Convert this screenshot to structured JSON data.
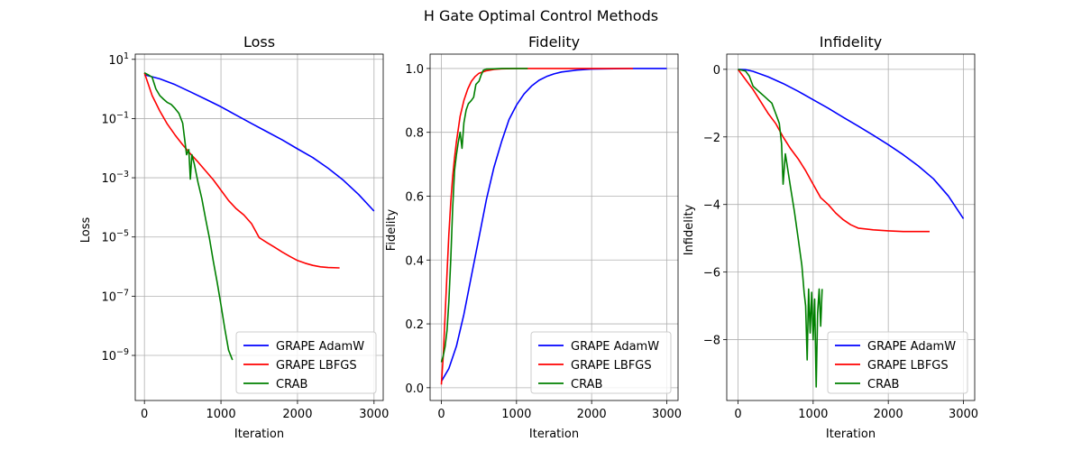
{
  "figure": {
    "title": "H Gate Optimal Control Methods"
  },
  "chart_data": [
    {
      "type": "line",
      "title": "Loss",
      "xlabel": "Iteration",
      "ylabel": "Loss",
      "yscale": "log",
      "xlim": [
        -120,
        3120
      ],
      "ylim": [
        3e-11,
        15
      ],
      "xticks": [
        0,
        1000,
        2000,
        3000
      ],
      "yticks": [
        10,
        0.1,
        0.001,
        1e-05,
        1e-07,
        1e-09
      ],
      "ytick_labels": [
        "10^1",
        "10^-1",
        "10^-3",
        "10^-5",
        "10^-7",
        "10^-9"
      ],
      "grid": true,
      "legend": "lower right",
      "series": [
        {
          "name": "GRAPE AdamW",
          "color": "#0000ff",
          "x": [
            0,
            200,
            400,
            600,
            800,
            1000,
            1200,
            1400,
            1600,
            1800,
            2000,
            2200,
            2400,
            2600,
            2800,
            3000
          ],
          "y": [
            3.0,
            2.2,
            1.4,
            0.8,
            0.45,
            0.25,
            0.13,
            0.068,
            0.036,
            0.019,
            0.0095,
            0.0048,
            0.0021,
            0.00082,
            0.00027,
            7.5e-05
          ]
        },
        {
          "name": "GRAPE LBFGS",
          "color": "#ff0000",
          "x": [
            0,
            100,
            200,
            300,
            400,
            500,
            600,
            700,
            800,
            900,
            1000,
            1100,
            1200,
            1300,
            1400,
            1500,
            1600,
            1700,
            1800,
            1900,
            2000,
            2100,
            2200,
            2300,
            2400,
            2550
          ],
          "y": [
            3.5,
            0.6,
            0.18,
            0.065,
            0.028,
            0.013,
            0.0065,
            0.0034,
            0.0017,
            0.00085,
            0.00038,
            0.00017,
            9e-05,
            5.5e-05,
            2.8e-05,
            9.5e-06,
            6.5e-06,
            4.5e-06,
            3.1e-06,
            2.2e-06,
            1.6e-06,
            1.3e-06,
            1.1e-06,
            9.8e-07,
            9.3e-07,
            9e-07
          ]
        },
        {
          "name": "CRAB",
          "color": "#008000",
          "x": [
            0,
            50,
            100,
            150,
            200,
            250,
            300,
            350,
            400,
            450,
            500,
            550,
            580,
            600,
            620,
            650,
            700,
            750,
            800,
            850,
            900,
            950,
            1000,
            1050,
            1100,
            1150
          ],
          "y": [
            3.5,
            3.0,
            2.5,
            1.0,
            0.6,
            0.45,
            0.35,
            0.3,
            0.22,
            0.15,
            0.07,
            0.006,
            0.009,
            0.0009,
            0.006,
            0.003,
            0.0007,
            0.0002,
            4e-05,
            9e-06,
            1.5e-06,
            3e-07,
            5e-08,
            8e-09,
            1.5e-09,
            7e-10
          ]
        }
      ]
    },
    {
      "type": "line",
      "title": "Fidelity",
      "xlabel": "Iteration",
      "ylabel": "Fidelity",
      "yscale": "linear",
      "xlim": [
        -150,
        3150
      ],
      "ylim": [
        -0.04,
        1.045
      ],
      "xticks": [
        0,
        1000,
        2000,
        3000
      ],
      "yticks": [
        0.0,
        0.2,
        0.4,
        0.6,
        0.8,
        1.0
      ],
      "ytick_labels": [
        "0.0",
        "0.2",
        "0.4",
        "0.6",
        "0.8",
        "1.0"
      ],
      "grid": true,
      "legend": "lower right",
      "series": [
        {
          "name": "GRAPE AdamW",
          "color": "#0000ff",
          "x": [
            0,
            100,
            200,
            300,
            400,
            500,
            600,
            700,
            800,
            900,
            1000,
            1100,
            1200,
            1300,
            1400,
            1500,
            1600,
            1800,
            2000,
            2200,
            2500,
            3000
          ],
          "y": [
            0.02,
            0.06,
            0.13,
            0.23,
            0.35,
            0.47,
            0.59,
            0.69,
            0.77,
            0.84,
            0.885,
            0.92,
            0.945,
            0.963,
            0.975,
            0.983,
            0.989,
            0.995,
            0.998,
            0.999,
            1.0,
            1.0
          ]
        },
        {
          "name": "GRAPE LBFGS",
          "color": "#ff0000",
          "x": [
            0,
            25,
            50,
            75,
            100,
            125,
            150,
            175,
            200,
            250,
            300,
            350,
            400,
            450,
            500,
            600,
            700,
            800,
            1000,
            1500,
            2550
          ],
          "y": [
            0.01,
            0.1,
            0.23,
            0.36,
            0.48,
            0.58,
            0.66,
            0.72,
            0.77,
            0.85,
            0.9,
            0.935,
            0.96,
            0.975,
            0.985,
            0.993,
            0.997,
            0.999,
            1.0,
            1.0,
            1.0
          ]
        },
        {
          "name": "CRAB",
          "color": "#008000",
          "x": [
            0,
            25,
            50,
            75,
            100,
            125,
            150,
            175,
            200,
            225,
            250,
            275,
            300,
            330,
            360,
            400,
            430,
            460,
            500,
            530,
            560,
            600,
            700,
            800,
            1000,
            1150
          ],
          "y": [
            0.08,
            0.1,
            0.13,
            0.18,
            0.27,
            0.4,
            0.56,
            0.68,
            0.73,
            0.77,
            0.8,
            0.75,
            0.83,
            0.87,
            0.89,
            0.9,
            0.91,
            0.95,
            0.96,
            0.98,
            0.995,
            0.998,
            0.999,
            1.0,
            1.0,
            1.0
          ]
        }
      ]
    },
    {
      "type": "line",
      "title": "Infidelity",
      "xlabel": "Iteration",
      "ylabel": "Infidelity",
      "yscale": "linear",
      "xlim": [
        -150,
        3150
      ],
      "ylim": [
        -9.8,
        0.45
      ],
      "xticks": [
        0,
        1000,
        2000,
        3000
      ],
      "yticks": [
        0,
        -2,
        -4,
        -6,
        -8
      ],
      "ytick_labels": [
        "0",
        "−2",
        "−4",
        "−6",
        "−8"
      ],
      "grid": true,
      "legend": "lower right",
      "series": [
        {
          "name": "GRAPE AdamW",
          "color": "#0000ff",
          "x": [
            0,
            100,
            200,
            400,
            600,
            800,
            1000,
            1200,
            1400,
            1600,
            1800,
            2000,
            2200,
            2400,
            2600,
            2800,
            3000
          ],
          "y": [
            0.0,
            -0.01,
            -0.06,
            -0.22,
            -0.42,
            -0.65,
            -0.9,
            -1.15,
            -1.42,
            -1.68,
            -1.95,
            -2.23,
            -2.53,
            -2.86,
            -3.24,
            -3.75,
            -4.42
          ]
        },
        {
          "name": "GRAPE LBFGS",
          "color": "#ff0000",
          "x": [
            0,
            100,
            200,
            300,
            400,
            500,
            600,
            700,
            800,
            900,
            1000,
            1100,
            1200,
            1300,
            1400,
            1500,
            1600,
            1800,
            2000,
            2200,
            2550
          ],
          "y": [
            0.0,
            -0.3,
            -0.6,
            -0.95,
            -1.3,
            -1.6,
            -2.0,
            -2.35,
            -2.65,
            -3.0,
            -3.4,
            -3.8,
            -4.0,
            -4.25,
            -4.45,
            -4.6,
            -4.7,
            -4.75,
            -4.78,
            -4.8,
            -4.8
          ]
        },
        {
          "name": "CRAB",
          "color": "#008000",
          "x": [
            0,
            100,
            150,
            200,
            250,
            300,
            350,
            400,
            450,
            500,
            550,
            580,
            600,
            630,
            700,
            750,
            800,
            850,
            880,
            900,
            920,
            940,
            960,
            980,
            1000,
            1020,
            1040,
            1060,
            1080,
            1100,
            1120
          ],
          "y": [
            0.0,
            -0.05,
            -0.2,
            -0.5,
            -0.6,
            -0.7,
            -0.8,
            -0.9,
            -1.0,
            -1.3,
            -1.6,
            -2.2,
            -3.4,
            -2.5,
            -3.5,
            -4.2,
            -5.0,
            -5.8,
            -6.6,
            -7.0,
            -8.6,
            -6.5,
            -7.8,
            -6.6,
            -8.0,
            -6.8,
            -9.4,
            -7.2,
            -6.5,
            -7.6,
            -6.5
          ]
        }
      ]
    }
  ]
}
